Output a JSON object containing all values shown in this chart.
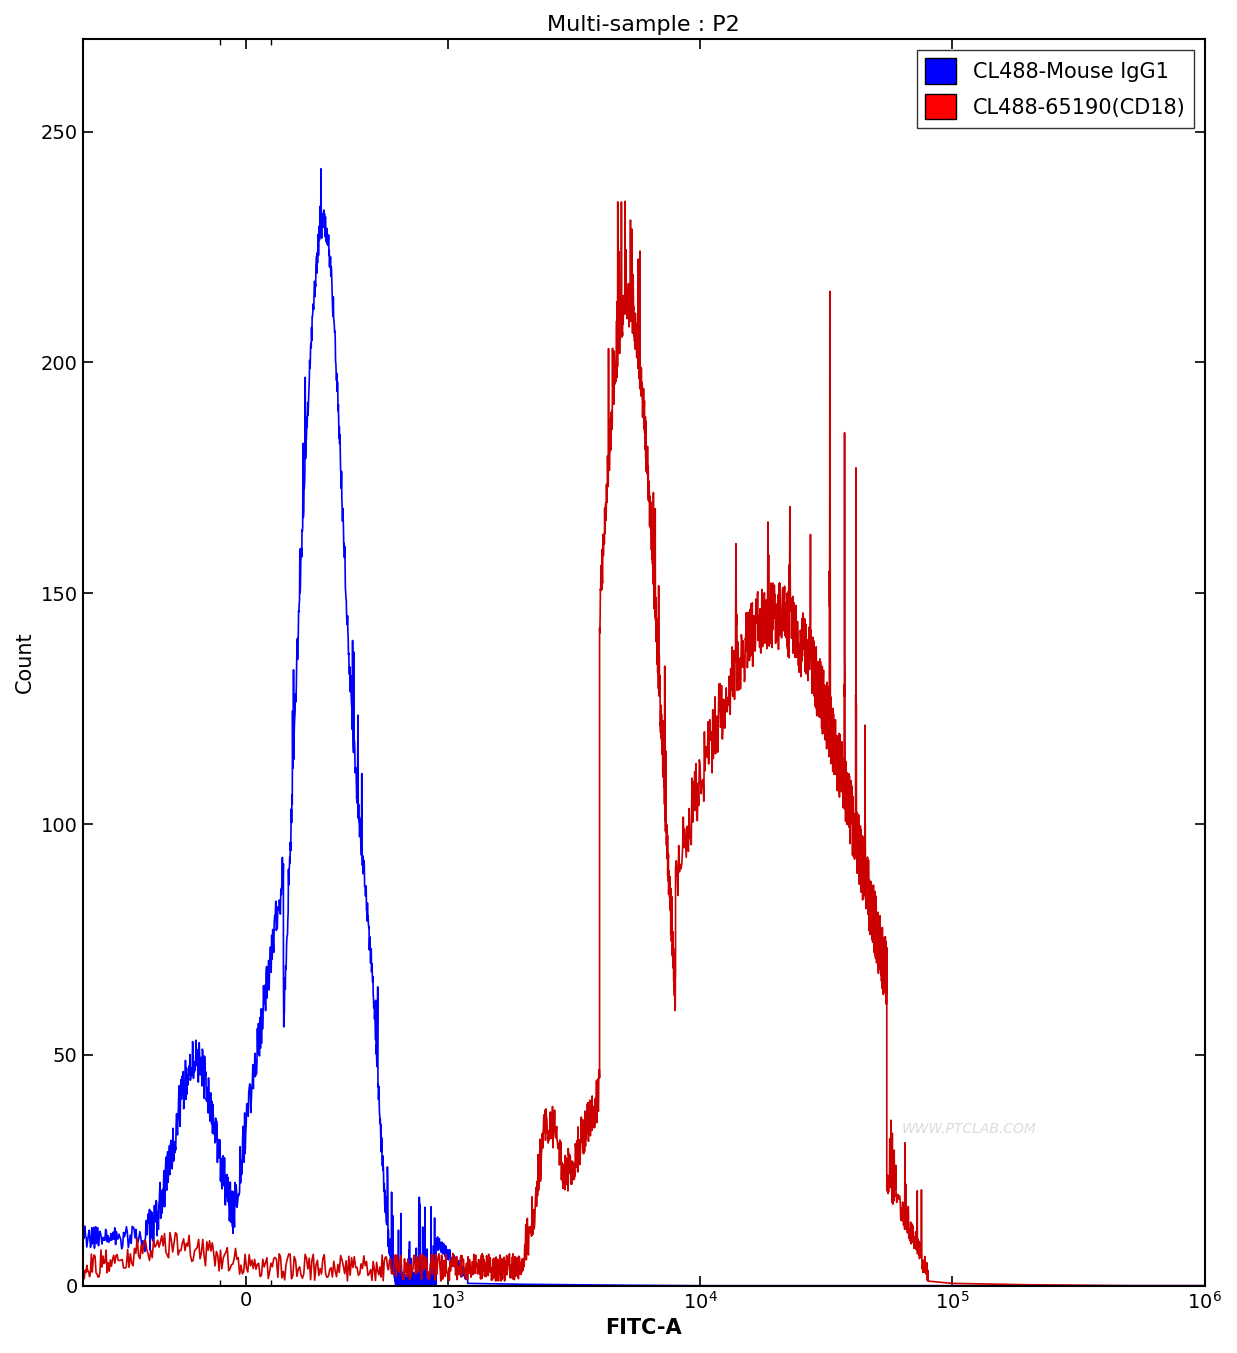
{
  "title": "Multi-sample : P2",
  "xlabel": "FITC-A",
  "ylabel": "Count",
  "ylim": [
    0,
    270
  ],
  "yticks": [
    0,
    50,
    100,
    150,
    200,
    250
  ],
  "legend_labels": [
    "CL488-Mouse IgG1",
    "CL488-65190(CD18)"
  ],
  "legend_colors": [
    "#0000ff",
    "#ff0000"
  ],
  "blue_color": "#0000ff",
  "red_color": "#cc0000",
  "watermark": "WWW.PTCLAB.COM",
  "title_fontsize": 16,
  "axis_fontsize": 15,
  "tick_fontsize": 14,
  "legend_fontsize": 15,
  "line_width": 1.2,
  "background_color": "#ffffff",
  "linthresh": 500,
  "linscale": 0.45
}
